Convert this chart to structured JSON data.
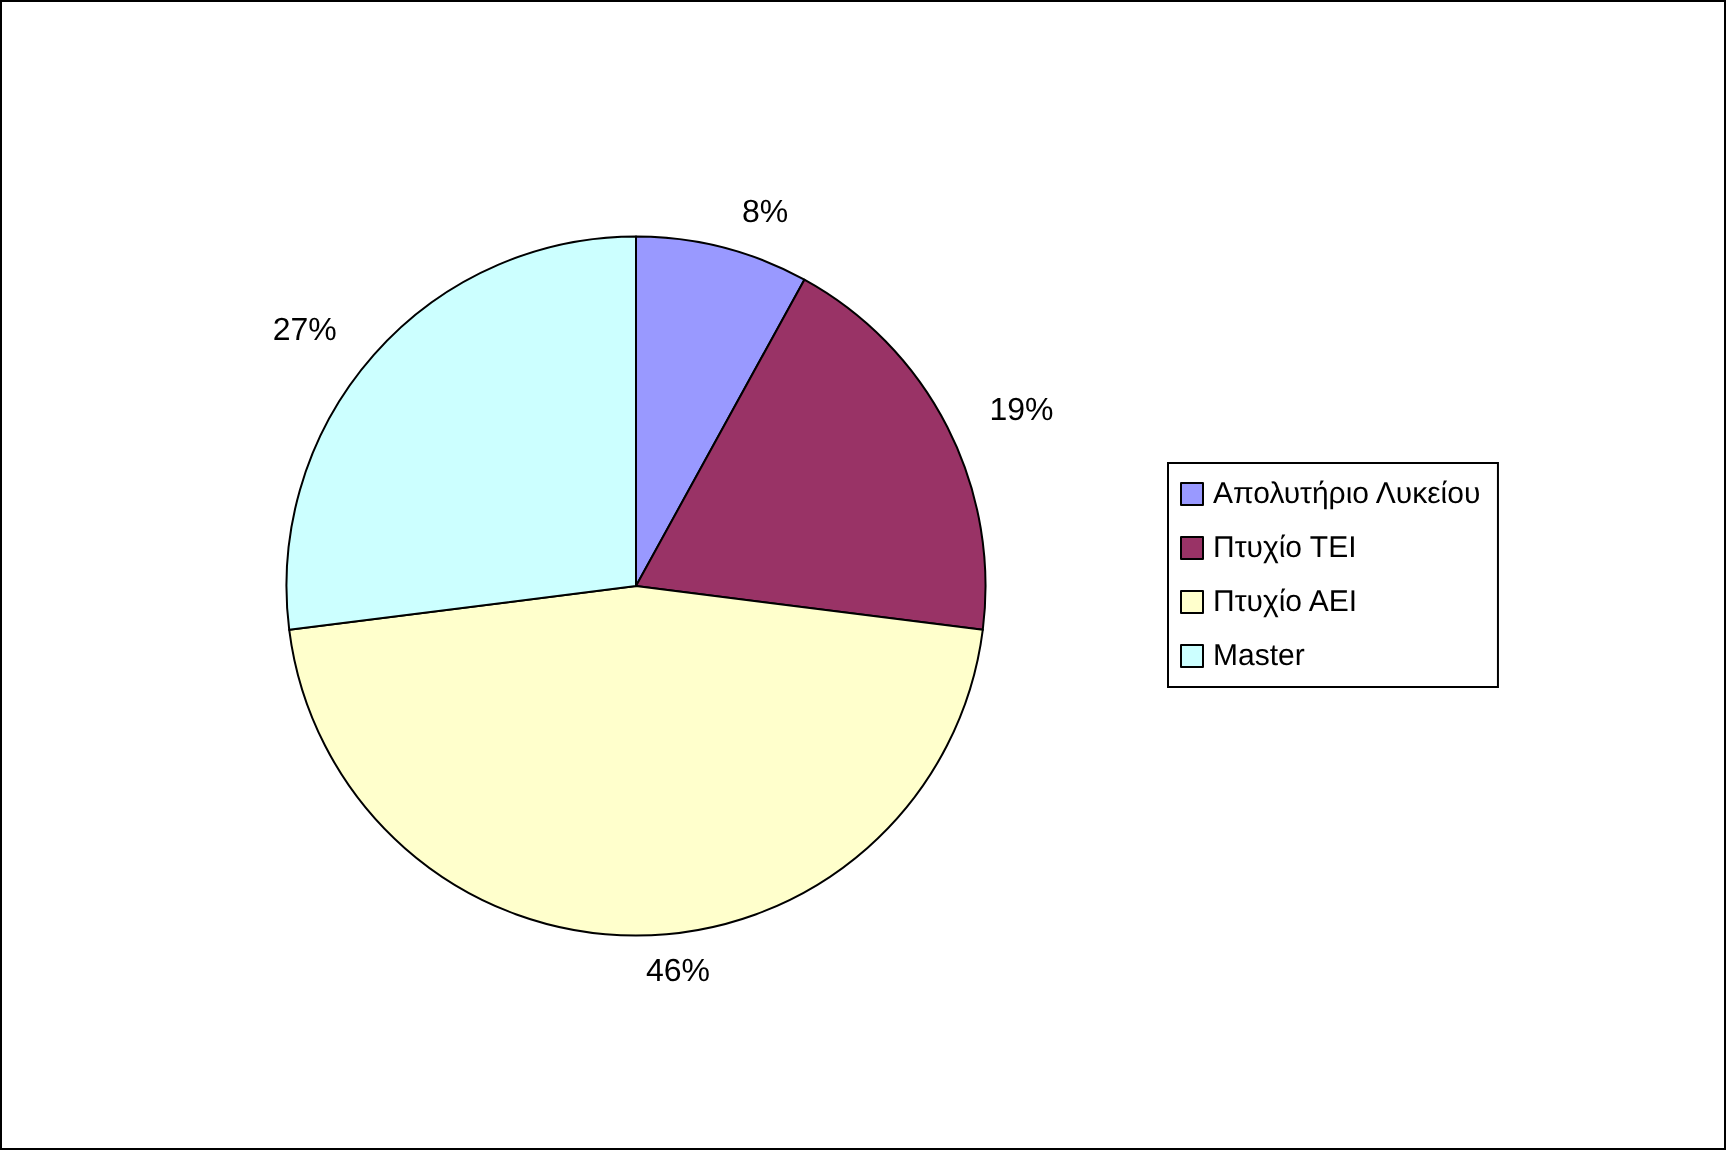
{
  "chart_data": {
    "type": "pie",
    "categories": [
      "Απολυτήριο Λυκείου",
      "Πτυχίο ΤΕΙ",
      "Πτυχίο ΑΕΙ",
      "Master"
    ],
    "values": [
      8,
      19,
      46,
      27
    ],
    "colors": [
      "#9999ff",
      "#993366",
      "#ffffcc",
      "#ccffff"
    ],
    "value_labels": [
      "8%",
      "19%",
      "46%",
      "27%"
    ],
    "legend": "right"
  }
}
